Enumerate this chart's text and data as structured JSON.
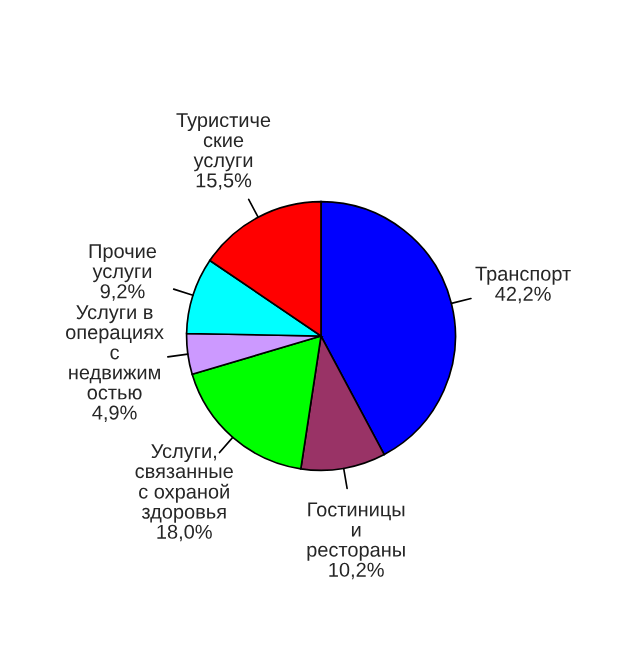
{
  "chart_data": {
    "type": "pie",
    "categories": [
      "Транспорт",
      "Гостиницы\nи\nрестораны",
      "Услуги,\nсвязанные\nс охраной\nздоровья",
      "Услуги в\nоперациях\nс\nнедвижим\nостью",
      "Прочие\nуслуги",
      "Туристиче\nские\nуслуги"
    ],
    "values": [
      42.2,
      10.2,
      18.0,
      4.9,
      9.2,
      15.5
    ],
    "value_labels": [
      "42,2%",
      "10,2%",
      "18,0%",
      "4,9%",
      "9,2%",
      "15,5%"
    ],
    "colors": [
      "#0000ff",
      "#993366",
      "#00ff00",
      "#cc99ff",
      "#00ffff",
      "#ff0000"
    ]
  }
}
